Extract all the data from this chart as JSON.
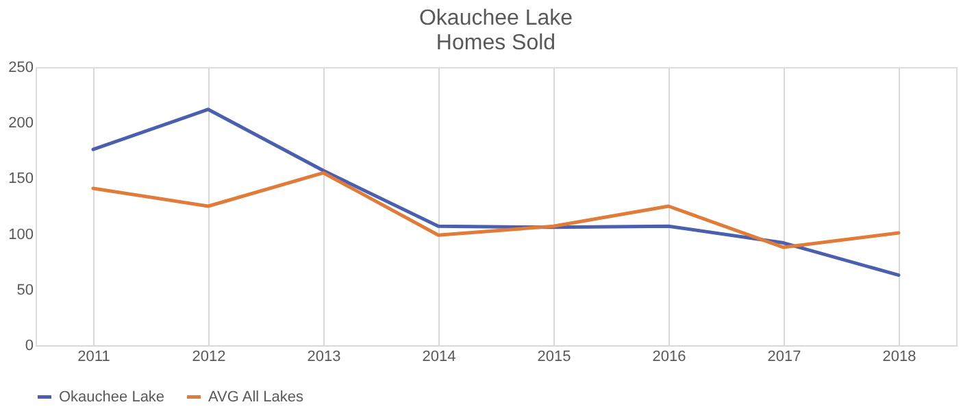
{
  "chart_data": {
    "type": "line",
    "title": [
      "Okauchee Lake",
      "Homes Sold"
    ],
    "categories": [
      "2011",
      "2012",
      "2013",
      "2014",
      "2015",
      "2016",
      "2017",
      "2018"
    ],
    "series": [
      {
        "name": "Okauchee Lake",
        "color": "#4a5fad",
        "values": [
          176,
          212,
          157,
          107,
          106,
          107,
          92,
          63
        ]
      },
      {
        "name": "AVG All Lakes",
        "color": "#e07b39",
        "values": [
          141,
          125,
          155,
          99,
          107,
          125,
          88,
          101
        ]
      }
    ],
    "ylim": [
      0,
      250
    ],
    "yticks": [
      0,
      50,
      100,
      150,
      200,
      250
    ],
    "grid": "x",
    "legend": "bottom",
    "marker": "none",
    "line_style": "solid"
  }
}
